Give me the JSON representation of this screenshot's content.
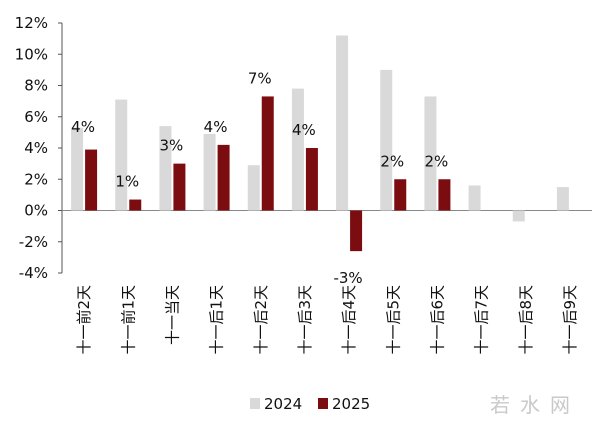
{
  "chart_data": {
    "type": "bar",
    "categories": [
      "十一前2天",
      "十一前1天",
      "十一当天",
      "十一后1天",
      "十一后2天",
      "十一后3天",
      "十一后4天",
      "十一后5天",
      "十一后6天",
      "十一后7天",
      "十一后8天",
      "十一后9天"
    ],
    "series": [
      {
        "name": "2024",
        "color": "#d9d9d9",
        "values": [
          5.3,
          7.1,
          5.4,
          4.9,
          2.9,
          7.8,
          11.2,
          9.0,
          7.3,
          1.6,
          -0.7,
          1.5
        ]
      },
      {
        "name": "2025",
        "color": "#7b0c10",
        "values": [
          3.9,
          0.7,
          3.0,
          4.2,
          7.3,
          4.0,
          -2.6,
          2.0,
          2.0,
          null,
          null,
          null
        ]
      }
    ],
    "data_labels_2025": [
      "4%",
      "1%",
      "3%",
      "4%",
      "7%",
      "4%",
      "-3%",
      "2%",
      "2%",
      "",
      "",
      ""
    ],
    "yticks": [
      "12%",
      "10%",
      "8%",
      "6%",
      "4%",
      "2%",
      "0%",
      "-2%",
      "-4%"
    ],
    "ylim": [
      -4,
      12
    ],
    "legend_position": "bottom",
    "grid": false
  },
  "watermark": "若水网"
}
